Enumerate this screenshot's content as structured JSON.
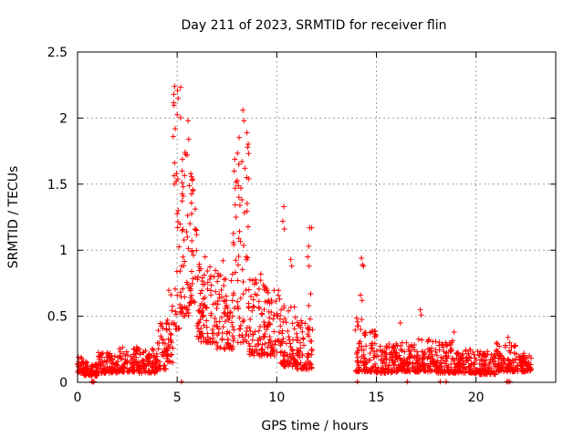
{
  "chart_data": {
    "type": "scatter",
    "title": "Day 211 of 2023, SRMTID for receiver flin",
    "xlabel": "GPS time / hours",
    "ylabel": "SRMTID / TECUs",
    "xlim": [
      0,
      24
    ],
    "ylim": [
      0,
      2.5
    ],
    "grid": true,
    "marker": "plus",
    "color": "#ff0000",
    "xticks": [
      0,
      5,
      10,
      15,
      20
    ],
    "xtick_labels": [
      "0",
      "5",
      "10",
      "15",
      "20"
    ],
    "yticks": [
      0,
      0.5,
      1,
      1.5,
      2,
      2.5
    ],
    "ytick_labels": [
      "0",
      "0.5",
      "1",
      "1.5",
      "2",
      "2.5"
    ],
    "envelope": [
      {
        "start": 0.0,
        "end": 0.3,
        "low": 0.07,
        "high": 0.19
      },
      {
        "start": 0.3,
        "end": 1.0,
        "low": 0.05,
        "high": 0.16
      },
      {
        "start": 1.0,
        "end": 2.0,
        "low": 0.07,
        "high": 0.23
      },
      {
        "start": 2.0,
        "end": 3.0,
        "low": 0.08,
        "high": 0.27
      },
      {
        "start": 3.0,
        "end": 4.0,
        "low": 0.07,
        "high": 0.26
      },
      {
        "start": 4.0,
        "end": 4.5,
        "low": 0.1,
        "high": 0.45
      },
      {
        "start": 4.5,
        "end": 4.8,
        "low": 0.15,
        "high": 0.7
      },
      {
        "start": 4.8,
        "end": 5.2,
        "low": 0.4,
        "high": 2.25
      },
      {
        "start": 5.2,
        "end": 5.6,
        "low": 0.5,
        "high": 1.75
      },
      {
        "start": 5.6,
        "end": 6.0,
        "low": 0.6,
        "high": 1.6
      },
      {
        "start": 6.0,
        "end": 7.0,
        "low": 0.3,
        "high": 0.9
      },
      {
        "start": 7.0,
        "end": 7.8,
        "low": 0.25,
        "high": 0.85
      },
      {
        "start": 7.8,
        "end": 8.6,
        "low": 0.3,
        "high": 2.07
      },
      {
        "start": 8.6,
        "end": 9.5,
        "low": 0.2,
        "high": 0.8
      },
      {
        "start": 9.5,
        "end": 10.2,
        "low": 0.2,
        "high": 0.7
      },
      {
        "start": 10.2,
        "end": 11.0,
        "low": 0.12,
        "high": 0.6
      },
      {
        "start": 11.0,
        "end": 11.8,
        "low": 0.1,
        "high": 0.5
      },
      {
        "start": 13.9,
        "end": 14.3,
        "low": 0.08,
        "high": 0.5
      },
      {
        "start": 14.3,
        "end": 15.0,
        "low": 0.08,
        "high": 0.4
      },
      {
        "start": 15.0,
        "end": 16.0,
        "low": 0.07,
        "high": 0.3
      },
      {
        "start": 16.0,
        "end": 17.0,
        "low": 0.08,
        "high": 0.3
      },
      {
        "start": 17.0,
        "end": 18.0,
        "low": 0.08,
        "high": 0.33
      },
      {
        "start": 18.0,
        "end": 19.0,
        "low": 0.07,
        "high": 0.32
      },
      {
        "start": 19.0,
        "end": 20.0,
        "low": 0.07,
        "high": 0.25
      },
      {
        "start": 20.0,
        "end": 21.0,
        "low": 0.06,
        "high": 0.25
      },
      {
        "start": 21.0,
        "end": 22.0,
        "low": 0.08,
        "high": 0.3
      },
      {
        "start": 22.0,
        "end": 22.8,
        "low": 0.08,
        "high": 0.22
      }
    ],
    "peaks": [
      {
        "x": 4.87,
        "y": 2.24
      },
      {
        "x": 4.83,
        "y": 2.18
      },
      {
        "x": 4.9,
        "y": 1.92
      },
      {
        "x": 4.8,
        "y": 1.86
      },
      {
        "x": 4.95,
        "y": 1.52
      },
      {
        "x": 5.05,
        "y": 1.3
      },
      {
        "x": 5.4,
        "y": 1.74
      },
      {
        "x": 5.5,
        "y": 1.72
      },
      {
        "x": 5.55,
        "y": 1.98
      },
      {
        "x": 5.58,
        "y": 1.84
      },
      {
        "x": 5.68,
        "y": 1.58
      },
      {
        "x": 5.75,
        "y": 1.53
      },
      {
        "x": 5.8,
        "y": 1.45
      },
      {
        "x": 5.25,
        "y": 1.6
      },
      {
        "x": 5.3,
        "y": 1.48
      },
      {
        "x": 8.3,
        "y": 2.06
      },
      {
        "x": 8.35,
        "y": 1.98
      },
      {
        "x": 8.25,
        "y": 1.67
      },
      {
        "x": 8.4,
        "y": 1.62
      },
      {
        "x": 8.2,
        "y": 1.47
      },
      {
        "x": 8.1,
        "y": 1.4
      },
      {
        "x": 8.15,
        "y": 1.34
      },
      {
        "x": 7.95,
        "y": 1.25
      },
      {
        "x": 10.35,
        "y": 1.33
      },
      {
        "x": 10.3,
        "y": 1.22
      },
      {
        "x": 10.38,
        "y": 1.16
      },
      {
        "x": 11.75,
        "y": 1.17
      },
      {
        "x": 11.65,
        "y": 1.17
      },
      {
        "x": 11.6,
        "y": 1.03
      },
      {
        "x": 11.55,
        "y": 0.95
      },
      {
        "x": 11.62,
        "y": 0.88
      },
      {
        "x": 11.7,
        "y": 0.67
      },
      {
        "x": 11.6,
        "y": 0.58
      },
      {
        "x": 14.25,
        "y": 0.94
      },
      {
        "x": 14.3,
        "y": 0.89
      },
      {
        "x": 14.35,
        "y": 0.88
      },
      {
        "x": 14.2,
        "y": 0.66
      },
      {
        "x": 14.28,
        "y": 0.62
      },
      {
        "x": 16.2,
        "y": 0.45
      },
      {
        "x": 17.2,
        "y": 0.55
      },
      {
        "x": 17.25,
        "y": 0.51
      },
      {
        "x": 18.9,
        "y": 0.38
      },
      {
        "x": 21.6,
        "y": 0.34
      },
      {
        "x": 7.3,
        "y": 0.92
      },
      {
        "x": 6.4,
        "y": 0.95
      },
      {
        "x": 9.2,
        "y": 0.82
      },
      {
        "x": 10.7,
        "y": 0.93
      },
      {
        "x": 10.75,
        "y": 0.88
      }
    ],
    "zero_points": [
      0.72,
      0.77,
      0.82,
      5.22,
      14.05,
      16.55,
      18.2,
      18.5,
      21.55,
      21.62,
      21.7
    ]
  }
}
